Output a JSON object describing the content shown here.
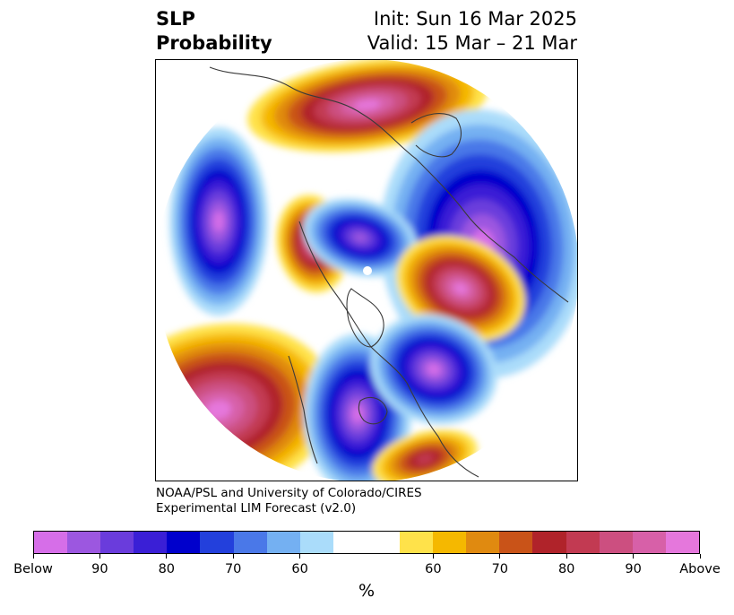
{
  "header": {
    "title_line1": "SLP",
    "title_line2": "Probability",
    "init": "Init: Sun 16 Mar 2025",
    "valid": "Valid: 15 Mar – 21 Mar"
  },
  "credit": {
    "line1": "NOAA/PSL and University of Colorado/CIRES",
    "line2": "Experimental LIM Forecast (v2.0)"
  },
  "chart_data": {
    "type": "heatmap",
    "projection": "north-polar-stereographic",
    "variable": "SLP",
    "colorbar": {
      "label": "%",
      "tick_labels": [
        "Below",
        "90",
        "80",
        "70",
        "60",
        "60",
        "70",
        "80",
        "90",
        "Above"
      ],
      "below_colors": [
        "#d66ee8",
        "#9c57e0",
        "#6a3cdc",
        "#3a1fd6",
        "#0000cc",
        "#2340dc",
        "#4a78e8",
        "#74b0f2",
        "#aadcfa"
      ],
      "neutral_color": "#ffffff",
      "above_colors": [
        "#ffe24a",
        "#f5b800",
        "#e08a10",
        "#c95318",
        "#b0232a",
        "#c23a52",
        "#cc4f80",
        "#d760a8",
        "#e577dc"
      ]
    },
    "anomaly_regions": [
      {
        "region": "Eurasia / Arctic (Europe–Siberia)",
        "sign": "above",
        "max_level": "90"
      },
      {
        "region": "Central Asia / China",
        "sign": "below",
        "max_level": "Below"
      },
      {
        "region": "North Pacific",
        "sign": "below",
        "max_level": "Below"
      },
      {
        "region": "Eastern Siberia / Bering",
        "sign": "above",
        "max_level": "90"
      },
      {
        "region": "Arctic Ocean",
        "sign": "below",
        "max_level": "90"
      },
      {
        "region": "Western North Atlantic",
        "sign": "above",
        "max_level": "90"
      },
      {
        "region": "Northeast Pacific",
        "sign": "above",
        "max_level": "Above"
      },
      {
        "region": "Central North America",
        "sign": "below",
        "max_level": "Below"
      },
      {
        "region": "North Atlantic south of Greenland",
        "sign": "below",
        "max_level": "Below"
      },
      {
        "region": "Subtropical Atlantic",
        "sign": "above",
        "max_level": "80"
      }
    ]
  }
}
